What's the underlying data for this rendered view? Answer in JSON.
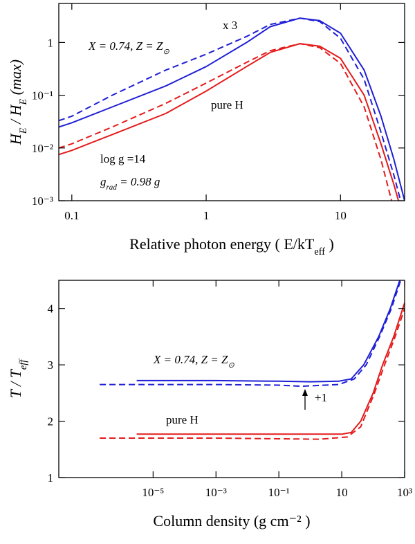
{
  "chart_data": [
    {
      "type": "line",
      "xlog": true,
      "ylog": true,
      "xlabel": [
        "Relative photon energy  ( E/kT",
        "eff",
        " )"
      ],
      "ylabel": [
        "H",
        "E",
        " / H",
        "E",
        " (max)"
      ],
      "xlim": [
        0.08,
        30
      ],
      "ylim": [
        0.001,
        5.5
      ],
      "xticks": [
        0.1,
        1,
        10
      ],
      "yticks": [
        {
          "value": 0.001,
          "label": "10⁻³"
        },
        {
          "value": 0.01,
          "label": "10⁻²"
        },
        {
          "value": 0.1,
          "label": "10⁻¹"
        },
        1
      ],
      "annotations": [
        [
          "x 3"
        ],
        [
          "X = 0.74, Z = Z",
          "⊙"
        ],
        [
          "pure H"
        ],
        [
          "log g =14"
        ],
        [
          "g",
          "rad",
          " = 0.98 g"
        ]
      ],
      "series": [
        {
          "color": "#1f1fd6",
          "style": "solid",
          "x": [
            0.08,
            0.1,
            0.2,
            0.5,
            1,
            2,
            3,
            5,
            7,
            10,
            15,
            20,
            25,
            30
          ],
          "values": [
            0.025,
            0.03,
            0.06,
            0.15,
            0.35,
            1.0,
            2.0,
            2.9,
            2.6,
            1.5,
            0.3,
            0.04,
            0.006,
            0.001
          ]
        },
        {
          "color": "#1f1fd6",
          "style": "dashed",
          "x": [
            0.08,
            0.1,
            0.2,
            0.5,
            1,
            2,
            3,
            5,
            7,
            10,
            15,
            20,
            25,
            28
          ],
          "values": [
            0.033,
            0.04,
            0.1,
            0.3,
            0.6,
            1.3,
            2.2,
            2.9,
            2.5,
            1.2,
            0.2,
            0.02,
            0.003,
            0.001
          ]
        },
        {
          "color": "#e41a1a",
          "style": "solid",
          "x": [
            0.08,
            0.1,
            0.2,
            0.5,
            1,
            2,
            3,
            5,
            7,
            10,
            15,
            20,
            25,
            27
          ],
          "values": [
            0.0075,
            0.009,
            0.018,
            0.045,
            0.12,
            0.35,
            0.65,
            0.95,
            0.85,
            0.5,
            0.1,
            0.012,
            0.002,
            0.001
          ]
        },
        {
          "color": "#e41a1a",
          "style": "dashed",
          "x": [
            0.08,
            0.1,
            0.2,
            0.5,
            1,
            2,
            3,
            5,
            7,
            10,
            15,
            20,
            24
          ],
          "values": [
            0.01,
            0.012,
            0.025,
            0.07,
            0.17,
            0.42,
            0.7,
            0.95,
            0.8,
            0.4,
            0.06,
            0.006,
            0.001
          ]
        }
      ]
    },
    {
      "type": "line",
      "xlog": true,
      "ylog": false,
      "xlabel": [
        "Column density  (g cm⁻² )"
      ],
      "ylabel": [
        "T / T",
        "eff"
      ],
      "xlim": [
        1e-08,
        1000
      ],
      "ylim": [
        1,
        4.5
      ],
      "xticks": [
        {
          "value": 1e-05,
          "label": "10⁻⁵"
        },
        {
          "value": 0.001,
          "label": "10⁻³"
        },
        {
          "value": 0.1,
          "label": "10⁻¹"
        },
        10,
        {
          "value": 1000,
          "label": "10³"
        }
      ],
      "yticks": [
        1,
        2,
        3,
        4
      ],
      "annotations": [
        [
          "X = 0.74, Z = Z",
          "⊙"
        ],
        [
          "+1"
        ],
        [
          "pure H"
        ]
      ],
      "series": [
        {
          "color": "#1f1fd6",
          "style": "solid",
          "x": [
            3e-06,
            0.001,
            0.1,
            1,
            8,
            20,
            50,
            150,
            350,
            700
          ],
          "values": [
            2.72,
            2.72,
            2.71,
            2.7,
            2.71,
            2.75,
            3.0,
            3.5,
            4.0,
            4.5
          ]
        },
        {
          "color": "#1f1fd6",
          "style": "dashed",
          "x": [
            2e-07,
            0.001,
            0.1,
            0.5,
            8,
            25,
            60,
            160,
            380,
            750
          ],
          "values": [
            2.65,
            2.65,
            2.64,
            2.62,
            2.65,
            2.75,
            3.0,
            3.5,
            4.0,
            4.5
          ]
        },
        {
          "color": "#e41a1a",
          "style": "solid",
          "x": [
            3e-06,
            0.001,
            1,
            10,
            20,
            40,
            100,
            200,
            450,
            1000
          ],
          "values": [
            1.77,
            1.77,
            1.77,
            1.77,
            1.8,
            2.0,
            2.5,
            3.0,
            3.5,
            4.1
          ]
        },
        {
          "color": "#e41a1a",
          "style": "dashed",
          "x": [
            2e-07,
            0.001,
            2,
            15,
            40,
            110,
            230,
            500,
            1000
          ],
          "values": [
            1.7,
            1.7,
            1.68,
            1.72,
            1.9,
            2.5,
            3.0,
            3.5,
            4.0
          ]
        }
      ]
    }
  ]
}
